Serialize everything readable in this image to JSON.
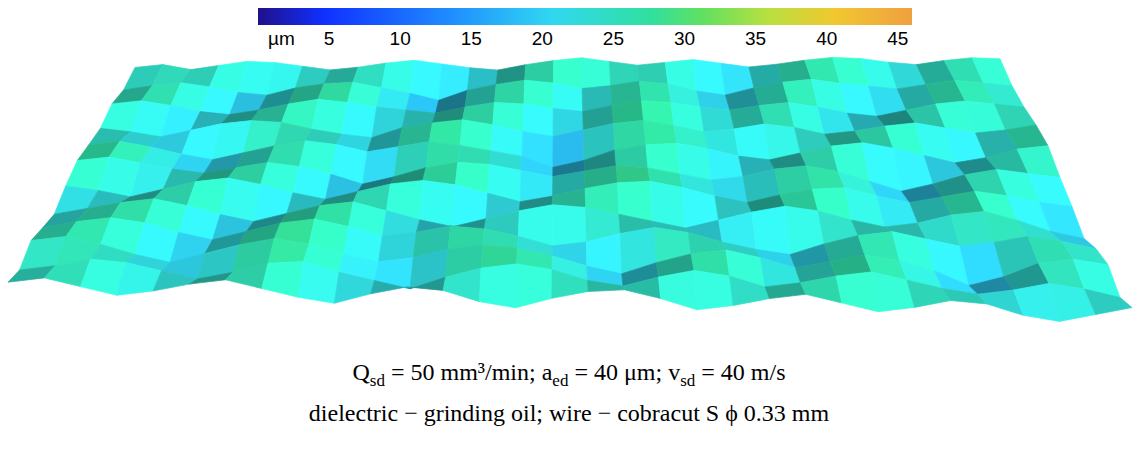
{
  "chart_data": {
    "type": "surface",
    "colorbar": {
      "label": "µm",
      "range": [
        0,
        46
      ],
      "ticks": [
        5,
        10,
        15,
        20,
        25,
        30,
        35,
        40,
        45
      ]
    },
    "surface": [
      [
        24,
        26,
        22,
        25,
        28,
        27,
        24,
        21,
        23,
        26,
        28,
        25,
        22,
        20,
        24,
        27,
        29,
        26,
        23,
        25,
        27,
        24,
        21,
        23,
        26,
        28,
        27,
        24,
        22,
        25,
        27,
        26
      ],
      [
        22,
        25,
        27,
        24,
        20,
        18,
        23,
        26,
        27,
        23,
        19,
        14,
        21,
        25,
        28,
        26,
        22,
        24,
        27,
        25,
        20,
        17,
        22,
        26,
        28,
        25,
        23,
        21,
        24,
        27,
        25,
        23
      ],
      [
        26,
        28,
        25,
        21,
        19,
        22,
        26,
        29,
        27,
        24,
        22,
        20,
        24,
        27,
        26,
        23,
        21,
        25,
        28,
        27,
        24,
        22,
        25,
        27,
        24,
        20,
        18,
        22,
        26,
        28,
        26,
        24
      ],
      [
        23,
        21,
        18,
        22,
        26,
        28,
        27,
        23,
        20,
        18,
        24,
        27,
        29,
        26,
        22,
        19,
        23,
        27,
        29,
        26,
        22,
        24,
        27,
        25,
        21,
        23,
        26,
        28,
        25,
        22,
        24,
        27
      ],
      [
        25,
        27,
        24,
        20,
        17,
        21,
        25,
        28,
        26,
        22,
        25,
        28,
        26,
        23,
        20,
        14,
        18,
        24,
        27,
        28,
        25,
        21,
        19,
        23,
        27,
        29,
        26,
        22,
        18,
        21,
        26,
        28
      ],
      [
        27,
        29,
        26,
        23,
        21,
        24,
        27,
        25,
        21,
        16,
        20,
        25,
        28,
        27,
        24,
        21,
        24,
        27,
        26,
        23,
        20,
        22,
        26,
        28,
        25,
        20,
        15,
        19,
        24,
        27,
        25,
        23
      ],
      [
        24,
        22,
        19,
        23,
        27,
        29,
        26,
        22,
        19,
        23,
        27,
        29,
        27,
        23,
        19,
        22,
        26,
        29,
        30,
        27,
        23,
        20,
        24,
        27,
        28,
        24,
        21,
        24,
        27,
        25,
        22,
        20
      ],
      [
        20,
        23,
        26,
        28,
        25,
        21,
        18,
        22,
        26,
        28,
        24,
        20,
        17,
        21,
        25,
        28,
        27,
        24,
        21,
        18,
        22,
        26,
        29,
        27,
        23,
        20,
        22,
        26,
        28,
        24,
        19,
        16
      ],
      [
        23,
        26,
        28,
        26,
        22,
        19,
        23,
        27,
        29,
        26,
        22,
        24,
        27,
        26,
        23,
        19,
        21,
        25,
        28,
        26,
        22,
        19,
        17,
        22,
        26,
        28,
        25,
        22,
        24,
        27,
        25,
        22
      ],
      [
        26,
        28,
        25,
        21,
        18,
        22,
        26,
        29,
        27,
        23,
        20,
        22,
        26,
        28,
        27,
        24,
        20,
        17,
        22,
        26,
        28,
        25,
        21,
        24,
        27,
        25,
        21,
        15,
        19,
        25,
        27,
        25
      ],
      [
        22,
        24,
        27,
        26,
        23,
        20,
        23,
        27,
        28,
        24,
        21,
        18,
        23,
        27,
        29,
        27,
        23,
        21,
        25,
        28,
        26,
        22,
        24,
        27,
        29,
        26,
        23,
        21,
        23,
        26,
        24,
        21
      ],
      [
        25,
        27,
        24,
        21,
        23,
        26,
        28,
        25,
        22,
        20,
        24,
        27,
        26,
        22,
        20,
        24,
        27,
        28,
        25,
        21,
        23,
        26,
        28,
        25,
        22,
        24,
        27,
        26,
        22,
        20,
        23,
        26
      ]
    ],
    "caption": [
      [
        "Q",
        "sd",
        " = 50 mm³/min; a",
        "ed",
        " = 40 μm; v",
        "sd",
        " = 40 m/s"
      ],
      [
        "dielectric − grinding oil; wire − cobracut S ϕ 0.33 mm"
      ]
    ]
  }
}
